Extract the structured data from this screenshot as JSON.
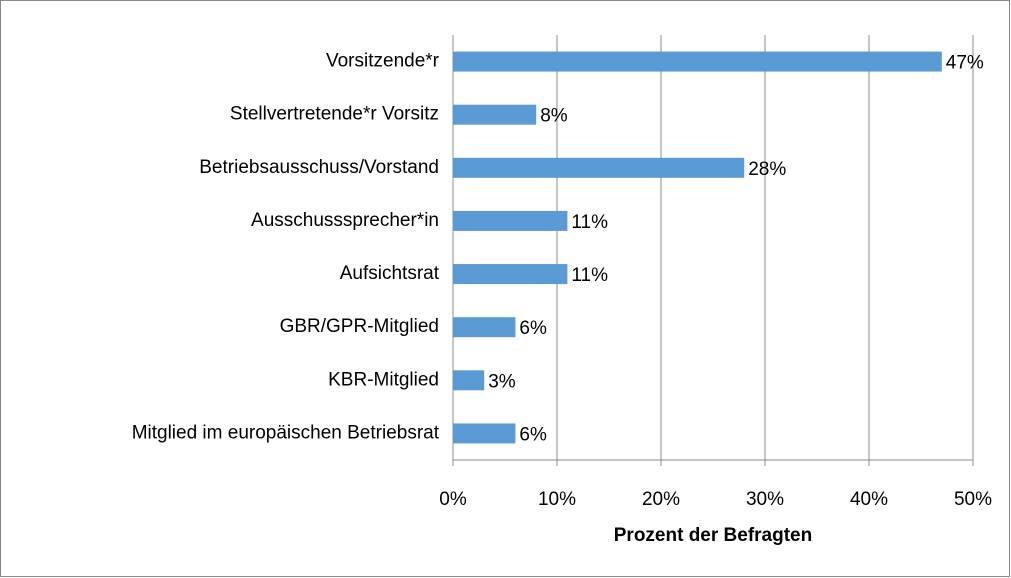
{
  "chart_data": {
    "type": "bar",
    "orientation": "horizontal",
    "x_label": "Prozent der Befragten",
    "categories": [
      "Vorsitzende*r",
      "Stellvertretende*r Vorsitz",
      "Betriebsausschuss/Vorstand",
      "Ausschusssprecher*in",
      "Aufsichtsrat",
      "GBR/GPR-Mitglied",
      "KBR-Mitglied",
      "Mitglied im europäischen Betriebsrat"
    ],
    "values": [
      47,
      8,
      28,
      11,
      11,
      6,
      3,
      6
    ],
    "value_labels": [
      "47%",
      "8%",
      "28%",
      "11%",
      "11%",
      "6%",
      "3%",
      "6%"
    ],
    "color": "#5b9bd5",
    "xlim": [
      0,
      50
    ],
    "xticks": [
      {
        "value": 0,
        "label": "0%"
      },
      {
        "value": 10,
        "label": "10%"
      },
      {
        "value": 20,
        "label": "20%"
      },
      {
        "value": 30,
        "label": "30%"
      },
      {
        "value": 40,
        "label": "40%"
      },
      {
        "value": 50,
        "label": "50%"
      }
    ],
    "grid": true
  }
}
